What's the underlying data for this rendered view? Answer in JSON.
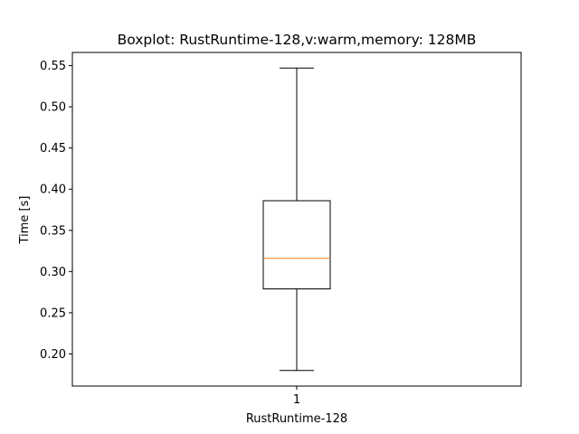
{
  "chart_data": {
    "type": "boxplot",
    "title": "Boxplot: RustRuntime-128,v:warm,memory: 128MB",
    "xlabel": "RustRuntime-128",
    "ylabel": "Time [s]",
    "categories": [
      "1"
    ],
    "boxes": [
      {
        "category": "1",
        "whisker_low": 0.18,
        "q1": 0.279,
        "median": 0.316,
        "q3": 0.386,
        "whisker_high": 0.547
      }
    ],
    "ylim": [
      0.161,
      0.566
    ],
    "yticks": [
      "0.20",
      "0.25",
      "0.30",
      "0.35",
      "0.40",
      "0.45",
      "0.50",
      "0.55"
    ],
    "grid": false,
    "colors": {
      "box": "#000000",
      "median": "#ff7f0e"
    }
  }
}
